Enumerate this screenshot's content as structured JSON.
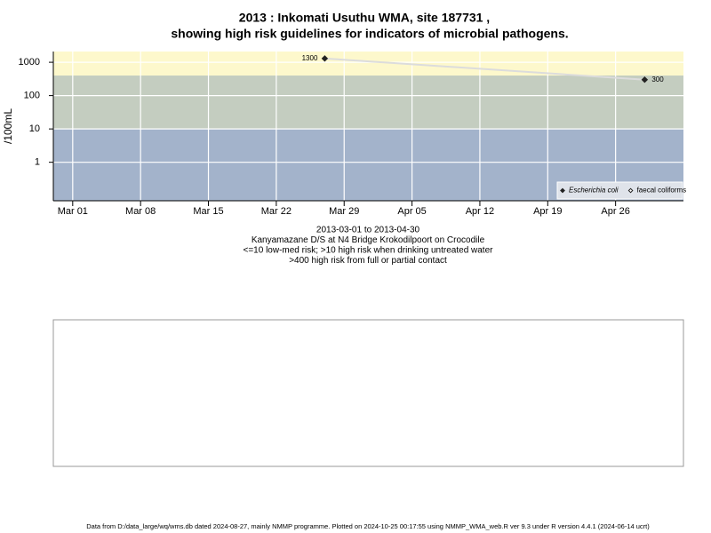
{
  "chart_data": {
    "type": "line",
    "title": "2013 : Inkomati Usuthu WMA, site 187731 ,",
    "subtitle": "showing high risk guidelines for indicators of microbial pathogens.",
    "y_label": "/100mL",
    "x_label_lines": [
      "2013-03-01 to 2013-04-30",
      "Kanyamazane D/S at N4 Bridge Krokodilpoort on Crocodile",
      "<=10 low-med risk; >10 high risk when drinking untreated water",
      ">400 high risk from full or partial contact"
    ],
    "x": [
      "Mar 27",
      "Apr 29"
    ],
    "series": [
      {
        "name": "Escherichia coli",
        "color": "#222222",
        "line_color": "#dcdcdc",
        "marker": "filled",
        "font_style": "italic",
        "values": [
          1300,
          300
        ]
      },
      {
        "name": "faecal coliforms",
        "color": "#222222",
        "line_color": "#dcdcdc",
        "marker": "open",
        "font_style": "normal",
        "values": [
          null,
          null
        ]
      }
    ],
    "xlim": [
      "Feb 27",
      "May 03"
    ],
    "xticks": [
      "Mar 01",
      "Mar 08",
      "Mar 15",
      "Mar 22",
      "Mar 29",
      "Apr 05",
      "Apr 12",
      "Apr 19",
      "Apr 26"
    ],
    "ylim": [
      0.07,
      2100
    ],
    "yticks": [
      1,
      10,
      100,
      1000
    ],
    "log_y": true,
    "grid": true,
    "legend": "bottom-right",
    "risk_thresholds": [
      10,
      400
    ],
    "band_colors": [
      "#a3b3cb",
      "#c4cdc0",
      "#fdf8cc"
    ],
    "footer": "Data from D:/data_large/wq/wms.db dated 2024-08-27, mainly NMMP programme. Plotted on 2024-10-25 00:17:55 using NMMP_WMA_web.R ver 9.3 under R version 4.4.1 (2024-06-14 ucrt)"
  }
}
